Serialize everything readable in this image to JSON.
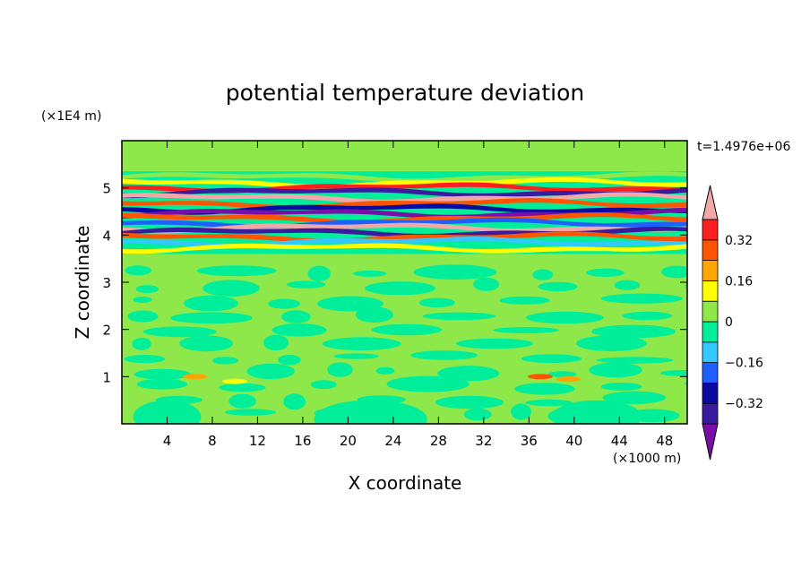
{
  "chart_data": {
    "type": "heatmap",
    "title": "potential temperature deviation",
    "xlabel": "X coordinate",
    "ylabel": "Z coordinate",
    "x_unit": "(×1000 m)",
    "y_unit": "(×1E4 m)",
    "time_label": "t=1.4976e+06",
    "xlim": [
      0,
      50
    ],
    "ylim": [
      0,
      6
    ],
    "x_ticks": [
      4,
      8,
      12,
      16,
      20,
      24,
      28,
      32,
      36,
      40,
      44,
      48
    ],
    "y_ticks": [
      1,
      2,
      3,
      4,
      5
    ],
    "colorbar": {
      "levels": [
        -0.48,
        -0.4,
        -0.32,
        -0.24,
        -0.16,
        -0.08,
        0,
        0.08,
        0.16,
        0.24,
        0.32,
        0.4
      ],
      "labeled_levels": [
        0.32,
        0.16,
        0,
        -0.16,
        -0.32
      ],
      "level_labels": [
        "0.32",
        "0.16",
        "0",
        "−0.16",
        "−0.32"
      ],
      "colors": [
        "#7a0fa8",
        "#3a1a9e",
        "#0a0aa0",
        "#1f5fff",
        "#33c8ff",
        "#00ee99",
        "#8ee84a",
        "#ffff00",
        "#ffa500",
        "#ff5500",
        "#ff1f1f",
        "#f2a8a8"
      ]
    },
    "bands": [
      {
        "z": 5.22,
        "value": 0.0
      },
      {
        "z": 5.1,
        "value": 0.12
      },
      {
        "z": 5.0,
        "value": 0.35
      },
      {
        "z": 4.9,
        "value": -0.4
      },
      {
        "z": 4.78,
        "value": 0.4
      },
      {
        "z": 4.66,
        "value": 0.3
      },
      {
        "z": 4.55,
        "value": -0.3
      },
      {
        "z": 4.45,
        "value": -0.44
      },
      {
        "z": 4.35,
        "value": 0.28
      },
      {
        "z": 4.25,
        "value": -0.2
      },
      {
        "z": 4.15,
        "value": 0.4
      },
      {
        "z": 4.05,
        "value": -0.4
      },
      {
        "z": 3.95,
        "value": 0.3
      },
      {
        "z": 3.85,
        "value": -0.12
      },
      {
        "z": 3.72,
        "value": 0.1
      }
    ],
    "hotspots": [
      {
        "x": 6.5,
        "z": 1.0,
        "value": 0.16
      },
      {
        "x": 10.0,
        "z": 0.9,
        "value": 0.12
      },
      {
        "x": 37.0,
        "z": 1.0,
        "value": 0.24
      },
      {
        "x": 39.5,
        "z": 0.95,
        "value": 0.16
      }
    ]
  }
}
